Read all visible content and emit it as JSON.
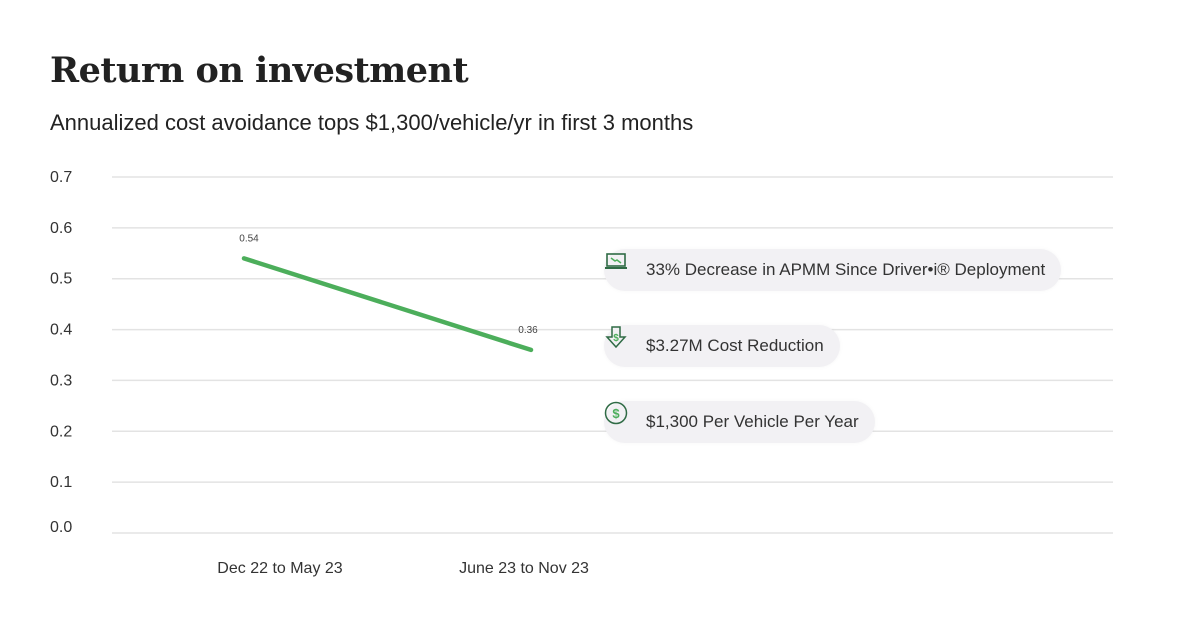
{
  "header": {
    "title": "Return on investment",
    "subtitle": "Annualized cost avoidance tops $1,300/vehicle/yr in first 3 months"
  },
  "chart_data": {
    "type": "line",
    "categories": [
      "Dec 22 to May 23",
      "June 23 to Nov 23"
    ],
    "series": [
      {
        "values": [
          0.54,
          0.36
        ],
        "color": "#4cae5b"
      }
    ],
    "data_labels": [
      "0.54",
      "0.36"
    ],
    "ylim": [
      0,
      0.7
    ],
    "yticks": [
      "0.0",
      "0.1",
      "0.2",
      "0.3",
      "0.4",
      "0.5",
      "0.6",
      "0.7"
    ],
    "grid": true,
    "annotations": [
      {
        "text": "33% Decrease in APMM  Since Driver•i® Deployment",
        "icon": "laptop-trend-down-icon"
      },
      {
        "text": "$3.27M Cost Reduction",
        "icon": "dollar-down-arrow-icon"
      },
      {
        "text": "$1,300 Per Vehicle Per Year",
        "icon": "dollar-circle-icon"
      }
    ]
  },
  "colors": {
    "accent": "#4cae5b",
    "icon": "#2f6b45",
    "grid": "#e3e3e3",
    "badge": "#f2f1f4"
  }
}
